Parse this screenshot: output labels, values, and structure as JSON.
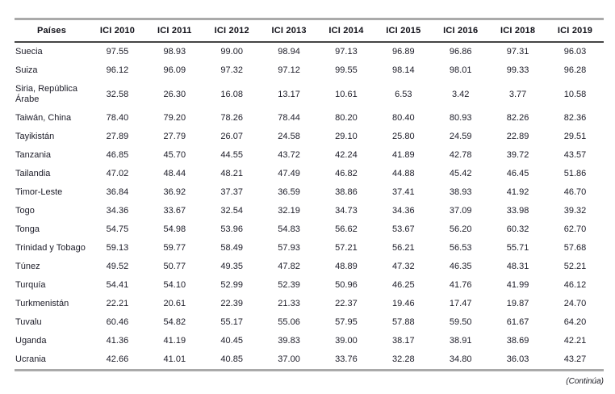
{
  "table": {
    "columns": [
      "Países",
      "ICI 2010",
      "ICI 2011",
      "ICI 2012",
      "ICI 2013",
      "ICI 2014",
      "ICI 2015",
      "ICI 2016",
      "ICI 2018",
      "ICI 2019"
    ],
    "rows": [
      {
        "country": "Suecia",
        "values": [
          "97.55",
          "98.93",
          "99.00",
          "98.94",
          "97.13",
          "96.89",
          "96.86",
          "97.31",
          "96.03"
        ]
      },
      {
        "country": "Suiza",
        "values": [
          "96.12",
          "96.09",
          "97.32",
          "97.12",
          "99.55",
          "98.14",
          "98.01",
          "99.33",
          "96.28"
        ]
      },
      {
        "country": "Siria, República Árabe",
        "values": [
          "32.58",
          "26.30",
          "16.08",
          "13.17",
          "10.61",
          "6.53",
          "3.42",
          "3.77",
          "10.58"
        ]
      },
      {
        "country": "Taiwán, China",
        "values": [
          "78.40",
          "79.20",
          "78.26",
          "78.44",
          "80.20",
          "80.40",
          "80.93",
          "82.26",
          "82.36"
        ]
      },
      {
        "country": "Tayikistán",
        "values": [
          "27.89",
          "27.79",
          "26.07",
          "24.58",
          "29.10",
          "25.80",
          "24.59",
          "22.89",
          "29.51"
        ]
      },
      {
        "country": "Tanzania",
        "values": [
          "46.85",
          "45.70",
          "44.55",
          "43.72",
          "42.24",
          "41.89",
          "42.78",
          "39.72",
          "43.57"
        ]
      },
      {
        "country": "Tailandia",
        "values": [
          "47.02",
          "48.44",
          "48.21",
          "47.49",
          "46.82",
          "44.88",
          "45.42",
          "46.45",
          "51.86"
        ]
      },
      {
        "country": "Timor-Leste",
        "values": [
          "36.84",
          "36.92",
          "37.37",
          "36.59",
          "38.86",
          "37.41",
          "38.93",
          "41.92",
          "46.70"
        ]
      },
      {
        "country": "Togo",
        "values": [
          "34.36",
          "33.67",
          "32.54",
          "32.19",
          "34.73",
          "34.36",
          "37.09",
          "33.98",
          "39.32"
        ]
      },
      {
        "country": "Tonga",
        "values": [
          "54.75",
          "54.98",
          "53.96",
          "54.83",
          "56.62",
          "53.67",
          "56.20",
          "60.32",
          "62.70"
        ]
      },
      {
        "country": "Trinidad y Tobago",
        "values": [
          "59.13",
          "59.77",
          "58.49",
          "57.93",
          "57.21",
          "56.21",
          "56.53",
          "55.71",
          "57.68"
        ]
      },
      {
        "country": "Túnez",
        "values": [
          "49.52",
          "50.77",
          "49.35",
          "47.82",
          "48.89",
          "47.32",
          "46.35",
          "48.31",
          "52.21"
        ]
      },
      {
        "country": "Turquía",
        "values": [
          "54.41",
          "54.10",
          "52.99",
          "52.39",
          "50.96",
          "46.25",
          "41.76",
          "41.99",
          "46.12"
        ]
      },
      {
        "country": "Turkmenistán",
        "values": [
          "22.21",
          "20.61",
          "22.39",
          "21.33",
          "22.37",
          "19.46",
          "17.47",
          "19.87",
          "24.70"
        ]
      },
      {
        "country": "Tuvalu",
        "values": [
          "60.46",
          "54.82",
          "55.17",
          "55.06",
          "57.95",
          "57.88",
          "59.50",
          "61.67",
          "64.20"
        ]
      },
      {
        "country": "Uganda",
        "values": [
          "41.36",
          "41.19",
          "40.45",
          "39.83",
          "39.00",
          "38.17",
          "38.91",
          "38.69",
          "42.21"
        ]
      },
      {
        "country": "Ucrania",
        "values": [
          "42.66",
          "41.01",
          "40.85",
          "37.00",
          "33.76",
          "32.28",
          "34.80",
          "36.03",
          "43.27"
        ]
      }
    ],
    "footer_note": "(Continúa)"
  },
  "colors": {
    "outer_border": "#aaaaaa",
    "header_separator": "#454545",
    "text": "#1c1c28"
  }
}
